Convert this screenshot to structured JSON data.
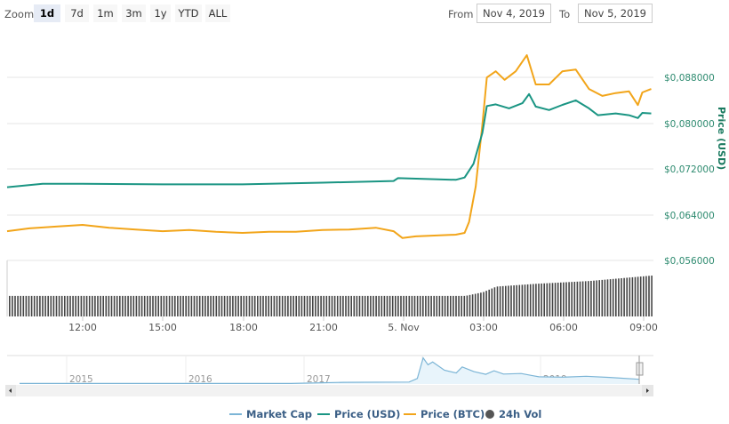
{
  "toolbar": {
    "zoom_label": "Zoom",
    "buttons": [
      {
        "label": "1d",
        "selected": true
      },
      {
        "label": "7d"
      },
      {
        "label": "1m"
      },
      {
        "label": "3m"
      },
      {
        "label": "1y"
      },
      {
        "label": "YTD"
      },
      {
        "label": "ALL"
      }
    ],
    "from_label": "From",
    "from_value": "Nov 4, 2019",
    "to_label": "To",
    "to_value": "Nov 5, 2019"
  },
  "chart_data": {
    "type": "line",
    "colors": {
      "market_cap": "#7cb5d6",
      "price_usd": "#1a9583",
      "price_btc": "#f2a51a",
      "volume": "#444444",
      "grid": "#e6e6e6"
    },
    "x_ticks": [
      "12:00",
      "15:00",
      "18:00",
      "21:00",
      "5. Nov",
      "03:00",
      "06:00",
      "09:00"
    ],
    "xlim": [
      "2019-11-04 09:10",
      "2019-11-05 09:25"
    ],
    "yaxis": {
      "label": "Price (USD)",
      "ticks": [
        "$0,056000",
        "$0,064000",
        "$0,072000",
        "$0,080000",
        "$0,088000"
      ],
      "ylim": [
        0.056,
        0.0961
      ],
      "grid": true
    },
    "series": [
      {
        "name": "Price (USD)",
        "axis": "usd",
        "points": [
          [
            "2019-11-04 09:10",
            0.0688
          ],
          [
            "2019-11-04 10:30",
            0.0694
          ],
          [
            "2019-11-04 12:00",
            0.0694
          ],
          [
            "2019-11-04 15:00",
            0.0693
          ],
          [
            "2019-11-04 18:00",
            0.0693
          ],
          [
            "2019-11-04 21:00",
            0.0696
          ],
          [
            "2019-11-04 23:40",
            0.0699
          ],
          [
            "2019-11-04 23:50",
            0.0704
          ],
          [
            "2019-11-05 02:00",
            0.0701
          ],
          [
            "2019-11-05 02:20",
            0.0705
          ],
          [
            "2019-11-05 02:40",
            0.0729
          ],
          [
            "2019-11-05 03:00",
            0.0783
          ],
          [
            "2019-11-05 03:10",
            0.083
          ],
          [
            "2019-11-05 03:30",
            0.0833
          ],
          [
            "2019-11-05 04:00",
            0.0826
          ],
          [
            "2019-11-05 04:30",
            0.0835
          ],
          [
            "2019-11-05 04:45",
            0.0851
          ],
          [
            "2019-11-05 05:00",
            0.0829
          ],
          [
            "2019-11-05 05:30",
            0.0823
          ],
          [
            "2019-11-05 06:00",
            0.0832
          ],
          [
            "2019-11-05 06:30",
            0.084
          ],
          [
            "2019-11-05 07:00",
            0.0826
          ],
          [
            "2019-11-05 07:20",
            0.0814
          ],
          [
            "2019-11-05 08:00",
            0.0817
          ],
          [
            "2019-11-05 08:30",
            0.0814
          ],
          [
            "2019-11-05 08:50",
            0.0809
          ],
          [
            "2019-11-05 09:00",
            0.0818
          ],
          [
            "2019-11-05 09:20",
            0.0817
          ]
        ]
      },
      {
        "name": "Price (BTC)",
        "axis": "btc",
        "ylim": [
          6e-06,
          1e-05
        ],
        "points": [
          [
            "2019-11-04 09:10",
            6.51e-06
          ],
          [
            "2019-11-04 10:00",
            6.56e-06
          ],
          [
            "2019-11-04 11:00",
            6.59e-06
          ],
          [
            "2019-11-04 12:00",
            6.62e-06
          ],
          [
            "2019-11-04 13:00",
            6.57e-06
          ],
          [
            "2019-11-04 14:00",
            6.54e-06
          ],
          [
            "2019-11-04 15:00",
            6.51e-06
          ],
          [
            "2019-11-04 16:00",
            6.53e-06
          ],
          [
            "2019-11-04 17:00",
            6.5e-06
          ],
          [
            "2019-11-04 18:00",
            6.48e-06
          ],
          [
            "2019-11-04 19:00",
            6.5e-06
          ],
          [
            "2019-11-04 20:00",
            6.5e-06
          ],
          [
            "2019-11-04 21:00",
            6.53e-06
          ],
          [
            "2019-11-04 22:00",
            6.54e-06
          ],
          [
            "2019-11-04 23:00",
            6.57e-06
          ],
          [
            "2019-11-04 23:40",
            6.51e-06
          ],
          [
            "2019-11-05 00:00",
            6.39e-06
          ],
          [
            "2019-11-05 00:30",
            6.42e-06
          ],
          [
            "2019-11-05 01:00",
            6.43e-06
          ],
          [
            "2019-11-05 02:00",
            6.45e-06
          ],
          [
            "2019-11-05 02:20",
            6.48e-06
          ],
          [
            "2019-11-05 02:30",
            6.67e-06
          ],
          [
            "2019-11-05 02:45",
            7.29e-06
          ],
          [
            "2019-11-05 03:00",
            8.37e-06
          ],
          [
            "2019-11-05 03:10",
            9.19e-06
          ],
          [
            "2019-11-05 03:30",
            9.3e-06
          ],
          [
            "2019-11-05 03:50",
            9.15e-06
          ],
          [
            "2019-11-05 04:15",
            9.3e-06
          ],
          [
            "2019-11-05 04:40",
            9.58e-06
          ],
          [
            "2019-11-05 05:00",
            9.07e-06
          ],
          [
            "2019-11-05 05:30",
            9.07e-06
          ],
          [
            "2019-11-05 06:00",
            9.3e-06
          ],
          [
            "2019-11-05 06:30",
            9.33e-06
          ],
          [
            "2019-11-05 07:00",
            8.99e-06
          ],
          [
            "2019-11-05 07:30",
            8.87e-06
          ],
          [
            "2019-11-05 08:00",
            8.92e-06
          ],
          [
            "2019-11-05 08:30",
            8.95e-06
          ],
          [
            "2019-11-05 08:50",
            8.71e-06
          ],
          [
            "2019-11-05 09:00",
            8.93e-06
          ],
          [
            "2019-11-05 09:20",
            8.99e-06
          ]
        ]
      },
      {
        "name": "24h Vol",
        "axis": "volume",
        "type": "column",
        "ylim": [
          0,
          60
        ],
        "points": [
          [
            "2019-11-04 09:10",
            22
          ],
          [
            "2019-11-05 02:20",
            22
          ],
          [
            "2019-11-05 03:00",
            26
          ],
          [
            "2019-11-05 03:30",
            32
          ],
          [
            "2019-11-05 05:00",
            35
          ],
          [
            "2019-11-05 07:00",
            38
          ],
          [
            "2019-11-05 09:25",
            44
          ]
        ]
      }
    ],
    "navigator": {
      "series_name": "Market Cap",
      "x_ticks": [
        "2015",
        "2016",
        "2017",
        "2018",
        "2019"
      ],
      "points": [
        [
          2014.6,
          2
        ],
        [
          2016.9,
          2
        ],
        [
          2017.35,
          6
        ],
        [
          2017.9,
          7
        ],
        [
          2017.97,
          20
        ],
        [
          2018.02,
          95
        ],
        [
          2018.06,
          70
        ],
        [
          2018.1,
          80
        ],
        [
          2018.2,
          50
        ],
        [
          2018.3,
          40
        ],
        [
          2018.35,
          62
        ],
        [
          2018.45,
          45
        ],
        [
          2018.55,
          35
        ],
        [
          2018.62,
          48
        ],
        [
          2018.7,
          36
        ],
        [
          2018.85,
          38
        ],
        [
          2018.95,
          30
        ],
        [
          2019.0,
          26
        ],
        [
          2019.2,
          25
        ],
        [
          2019.4,
          28
        ],
        [
          2019.6,
          24
        ],
        [
          2019.85,
          17
        ]
      ],
      "xlim": [
        2014.6,
        2019.85
      ],
      "ylim": [
        0,
        100
      ]
    },
    "legend": {
      "position": "bottom",
      "items": [
        "Market Cap",
        "Price (USD)",
        "Price (BTC)",
        "24h Vol"
      ]
    }
  }
}
